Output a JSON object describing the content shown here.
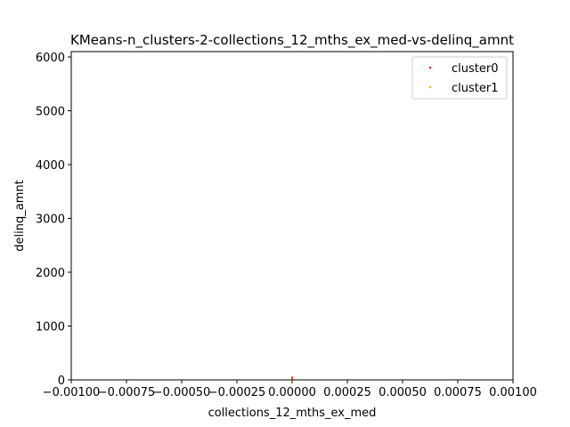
{
  "chart_data": {
    "type": "scatter",
    "title": "KMeans-n_clusters-2-collections_12_mths_ex_med-vs-delinq_amnt",
    "xlabel": "collections_12_mths_ex_med",
    "ylabel": "delinq_amnt",
    "xlim": [
      -0.001,
      0.001
    ],
    "ylim": [
      0,
      6100
    ],
    "x_ticks": [
      -0.001,
      -0.00075,
      -0.0005,
      -0.00025,
      0.0,
      0.00025,
      0.0005,
      0.00075,
      0.001
    ],
    "x_tick_labels": [
      "−0.00100",
      "−0.00075",
      "−0.00050",
      "−0.00025",
      "0.00000",
      "0.00025",
      "0.00050",
      "0.00075",
      "0.00100"
    ],
    "y_ticks": [
      0,
      1000,
      2000,
      3000,
      4000,
      5000,
      6000
    ],
    "y_tick_labels": [
      "0",
      "1000",
      "2000",
      "3000",
      "4000",
      "5000",
      "6000"
    ],
    "grid": false,
    "legend_position": "top-right",
    "series": [
      {
        "name": "cluster0",
        "color": "#ff0000",
        "points": [
          [
            0.0,
            0
          ],
          [
            0.0,
            20
          ],
          [
            0.0,
            45
          ]
        ]
      },
      {
        "name": "cluster1",
        "color": "#ffa500",
        "points": [
          [
            0.0,
            0
          ],
          [
            0.0,
            10
          ]
        ]
      }
    ]
  }
}
